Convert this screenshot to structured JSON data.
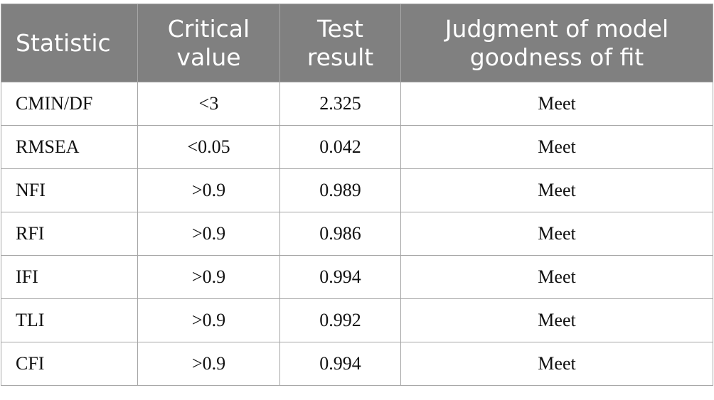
{
  "table": {
    "header": [
      "Statistic",
      "Critical value",
      "Test result",
      "Judgment of model goodness of fit"
    ],
    "rows": [
      [
        "CMIN/DF",
        "<3",
        "2.325",
        "Meet"
      ],
      [
        "RMSEA",
        "<0.05",
        "0.042",
        "Meet"
      ],
      [
        "NFI",
        ">0.9",
        "0.989",
        "Meet"
      ],
      [
        "RFI",
        ">0.9",
        "0.986",
        "Meet"
      ],
      [
        "IFI",
        ">0.9",
        "0.994",
        "Meet"
      ],
      [
        "TLI",
        ">0.9",
        "0.992",
        "Meet"
      ],
      [
        "CFI",
        ">0.9",
        "0.994",
        "Meet"
      ]
    ]
  }
}
